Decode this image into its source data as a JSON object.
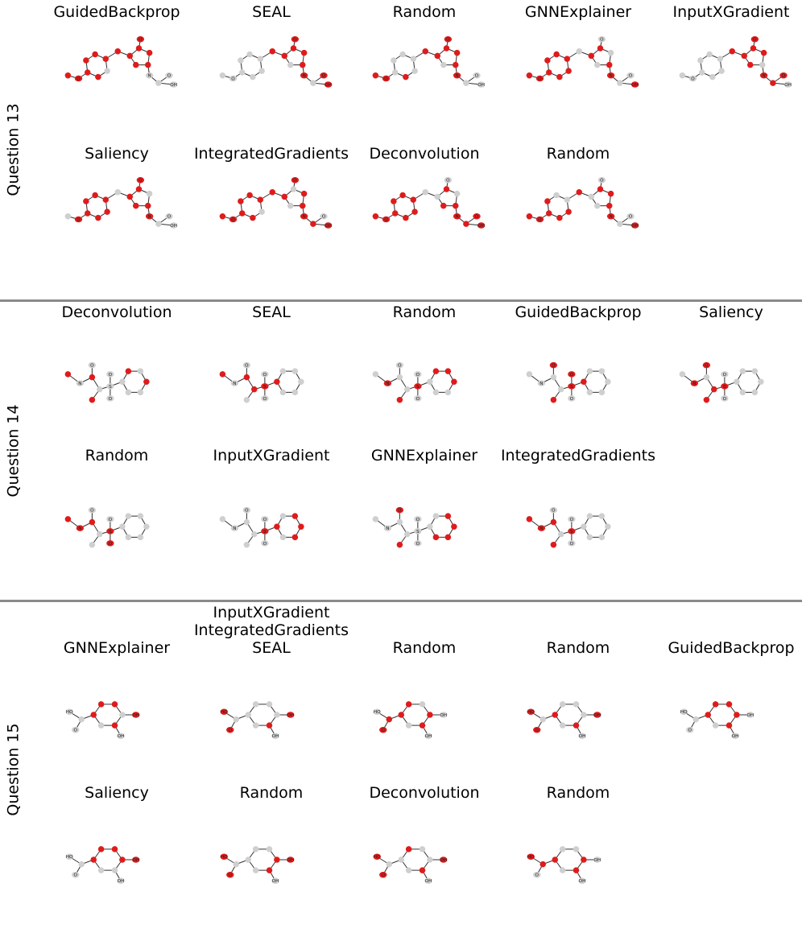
{
  "colors": {
    "highlight": "#e01b1b",
    "neutral": "#cfcfcf",
    "bond": "#333333",
    "divider": "#8a8a8a"
  },
  "questions": [
    {
      "label": "Question 13",
      "molecule": "hydantoin-anisole",
      "rows": [
        [
          {
            "titles": [
              "GuidedBackprop"
            ],
            "highlight": [
              0,
              1,
              2,
              3,
              4,
              5,
              7,
              8,
              9,
              10,
              11,
              12,
              13,
              14
            ]
          },
          {
            "titles": [
              "SEAL"
            ],
            "highlight": [
              8,
              9,
              10,
              11,
              12,
              13,
              15,
              17,
              18
            ]
          },
          {
            "titles": [
              "Random"
            ],
            "highlight": [
              0,
              1,
              7,
              8,
              9,
              10,
              11,
              12,
              13,
              15
            ]
          },
          {
            "titles": [
              "GNNExplainer"
            ],
            "highlight": [
              0,
              1,
              2,
              3,
              4,
              5,
              6,
              7,
              9,
              10,
              13,
              15,
              18
            ]
          },
          {
            "titles": [
              "InputXGradient"
            ],
            "highlight": [
              8,
              9,
              10,
              11,
              12,
              14,
              15,
              16,
              17
            ]
          }
        ],
        [
          {
            "titles": [
              "Saliency"
            ],
            "highlight": [
              1,
              2,
              3,
              4,
              5,
              6,
              7,
              9,
              10,
              11,
              13,
              14,
              15
            ]
          },
          {
            "titles": [
              "IntegratedGradients"
            ],
            "highlight": [
              0,
              1,
              2,
              3,
              4,
              5,
              7,
              8,
              9,
              11,
              12,
              13,
              15,
              16,
              18
            ]
          },
          {
            "titles": [
              "Deconvolution"
            ],
            "highlight": [
              0,
              1,
              2,
              3,
              4,
              5,
              6,
              7,
              10,
              13,
              14,
              15,
              16,
              17,
              18
            ]
          },
          {
            "titles": [
              "Random"
            ],
            "highlight": [
              0,
              1,
              2,
              3,
              6,
              7,
              8,
              10,
              12,
              13,
              15,
              18
            ]
          }
        ]
      ]
    },
    {
      "label": "Question 14",
      "molecule": "sulfonyl-benzene",
      "rows": [
        [
          {
            "titles": [
              "Deconvolution"
            ],
            "highlight": [
              0,
              2,
              5,
              12,
              10
            ]
          },
          {
            "titles": [
              "SEAL"
            ],
            "highlight": [
              0,
              2,
              4,
              6,
              9
            ]
          },
          {
            "titles": [
              "Random"
            ],
            "highlight": [
              1,
              5,
              6,
              10,
              11,
              12
            ]
          },
          {
            "titles": [
              "GuidedBackprop"
            ],
            "highlight": [
              3,
              5,
              6,
              7,
              9
            ]
          },
          {
            "titles": [
              "Saliency"
            ],
            "highlight": [
              1,
              3,
              4,
              5,
              6
            ]
          }
        ],
        [
          {
            "titles": [
              "Random"
            ],
            "highlight": [
              0,
              1,
              2,
              6,
              8
            ]
          },
          {
            "titles": [
              "InputXGradient"
            ],
            "highlight": [
              6,
              9,
              11,
              12,
              13
            ]
          },
          {
            "titles": [
              "GNNExplainer"
            ],
            "highlight": [
              3,
              5,
              11,
              12,
              13,
              14
            ]
          },
          {
            "titles": [
              "IntegratedGradients"
            ],
            "highlight": [
              0,
              1,
              2,
              5,
              6
            ]
          }
        ]
      ]
    },
    {
      "label": "Question 15",
      "molecule": "dihydroxybenzoic-acid",
      "rows": [
        [
          {
            "titles": [
              "GNNExplainer"
            ],
            "highlight": [
              3,
              4,
              5,
              7,
              9
            ]
          },
          {
            "titles": [
              "InputXGradient",
              "IntegratedGradients",
              "SEAL"
            ],
            "highlight": [
              0,
              2,
              7,
              9
            ]
          },
          {
            "titles": [
              "Random"
            ],
            "highlight": [
              1,
              2,
              3,
              4,
              6,
              7
            ]
          },
          {
            "titles": [
              "Random"
            ],
            "highlight": [
              0,
              2,
              3,
              7,
              9
            ]
          },
          {
            "titles": [
              "GuidedBackprop"
            ],
            "highlight": [
              3,
              4,
              5,
              6,
              7
            ]
          }
        ],
        [
          {
            "titles": [
              "Saliency"
            ],
            "highlight": [
              3,
              4,
              5,
              6,
              9
            ]
          },
          {
            "titles": [
              "Random"
            ],
            "highlight": [
              0,
              2,
              6,
              7,
              9
            ]
          },
          {
            "titles": [
              "Deconvolution"
            ],
            "highlight": [
              0,
              2,
              4,
              7,
              9
            ]
          },
          {
            "titles": [
              "Random"
            ],
            "highlight": [
              0,
              1,
              3,
              6,
              7
            ]
          }
        ]
      ]
    }
  ]
}
